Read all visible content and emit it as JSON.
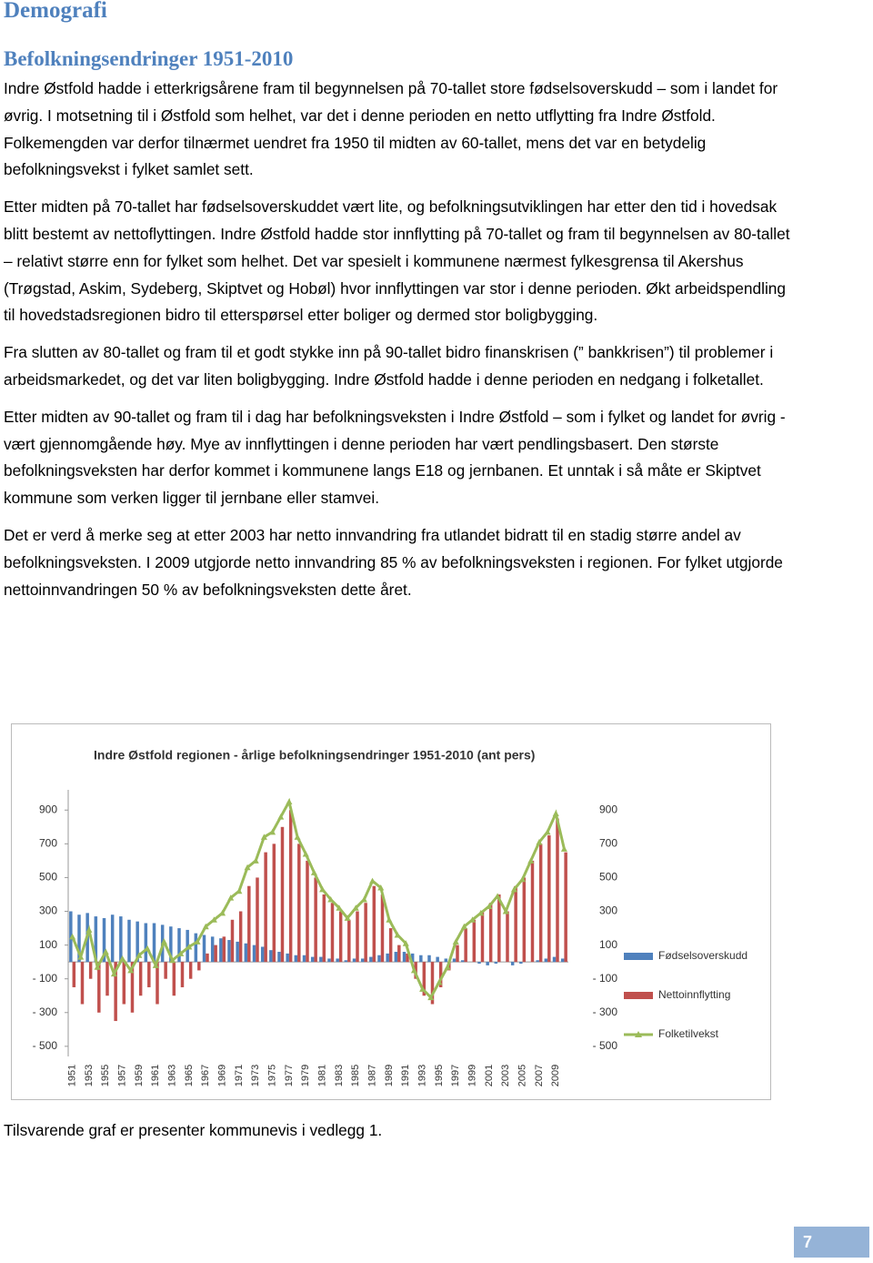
{
  "header": {
    "title": "Demografi",
    "subtitle": "Befolkningsendringer 1951-2010"
  },
  "paragraphs": [
    "Indre Østfold hadde i etterkrigsårene fram til begynnelsen på 70-tallet store fødselsoverskudd – som i landet for øvrig.  I motsetning til i Østfold som helhet, var det i denne perioden en netto utflytting fra Indre Østfold.  Folkemengden var derfor tilnærmet uendret fra 1950 til midten av 60-tallet, mens det var en betydelig befolkningsvekst i fylket samlet sett.",
    "Etter midten på 70-tallet har fødselsoverskuddet vært lite, og befolkningsutviklingen har etter den tid i hovedsak blitt bestemt av nettoflyttingen. Indre Østfold hadde stor innflytting på 70-tallet og fram til begynnelsen av 80-tallet – relativt større enn for fylket som helhet. Det var spesielt i kommunene nærmest fylkesgrensa til Akershus (Trøgstad, Askim, Sydeberg, Skiptvet og Hobøl) hvor innflyttingen var stor i denne perioden.  Økt arbeidspendling til hovedstadsregionen bidro til etterspørsel etter boliger og dermed stor boligbygging.",
    "Fra slutten av 80-tallet og fram til et godt stykke inn på 90-tallet bidro finanskrisen (” bankkrisen”) til problemer i arbeidsmarkedet, og det var liten boligbygging. Indre Østfold hadde i denne perioden en nedgang i folketallet.",
    "Etter midten av 90-tallet og fram til i dag har befolkningsveksten i Indre Østfold – som i fylket og landet for øvrig - vært gjennomgående høy.  Mye av innflyttingen i denne perioden har vært pendlingsbasert.  Den største befolkningsveksten har derfor kommet i kommunene langs E18 og jernbanen.  Et unntak i så måte er Skiptvet kommune som verken ligger til jernbane eller stamvei.",
    "Det er verd å merke seg at etter 2003 har netto innvandring fra utlandet bidratt til en stadig større andel av befolkningsveksten.  I 2009 utgjorde netto innvandring 85 % av befolkningsveksten i regionen.  For fylket utgjorde nettoinnvandringen 50 % av befolkningsveksten dette året."
  ],
  "after_chart": "Tilsvarende graf er presenter kommunevis i vedlegg 1.",
  "footer": {
    "page_number": "7"
  },
  "chart_data": {
    "type": "bar-line",
    "title": "Indre Østfold regionen - årlige befolkningsendringer 1951-2010 (ant pers)",
    "categories": [
      "1951",
      null,
      "1953",
      null,
      "1955",
      null,
      "1957",
      null,
      "1959",
      null,
      "1961",
      null,
      "1963",
      null,
      "1965",
      null,
      "1967",
      null,
      "1969",
      null,
      "1971",
      null,
      "1973",
      null,
      "1975",
      null,
      "1977",
      null,
      "1979",
      null,
      "1981",
      null,
      "1983",
      null,
      "1985",
      null,
      "1987",
      null,
      "1989",
      null,
      "1991",
      null,
      "1993",
      null,
      "1995",
      null,
      "1997",
      null,
      "1999",
      null,
      "2001",
      null,
      "2003",
      null,
      "2005",
      null,
      "2007",
      null,
      "2009",
      null
    ],
    "ylim": [
      -560,
      1020
    ],
    "yticks": [
      {
        "value": -500,
        "label": "- 500"
      },
      {
        "value": -300,
        "label": "- 300"
      },
      {
        "value": -100,
        "label": "- 100"
      },
      100,
      300,
      500,
      700,
      900
    ],
    "series": [
      {
        "name": "Fødselsoverskudd",
        "color": "#4f81bd",
        "kind": "bar",
        "values": [
          300,
          280,
          290,
          270,
          260,
          280,
          270,
          250,
          240,
          230,
          230,
          220,
          210,
          200,
          190,
          170,
          160,
          150,
          140,
          130,
          120,
          110,
          100,
          90,
          70,
          60,
          50,
          40,
          40,
          30,
          30,
          20,
          20,
          10,
          20,
          20,
          30,
          40,
          50,
          60,
          60,
          50,
          40,
          40,
          30,
          20,
          20,
          10,
          0,
          -10,
          -20,
          -10,
          0,
          -20,
          -10,
          0,
          10,
          20,
          30,
          20
        ]
      },
      {
        "name": "Nettoinnflytting",
        "color": "#c0504d",
        "kind": "bar",
        "values": [
          -150,
          -250,
          -100,
          -300,
          -200,
          -350,
          -250,
          -300,
          -200,
          -150,
          -250,
          -100,
          -200,
          -150,
          -100,
          -50,
          50,
          100,
          150,
          250,
          300,
          450,
          500,
          650,
          700,
          800,
          900,
          700,
          600,
          500,
          400,
          350,
          300,
          250,
          300,
          350,
          450,
          400,
          200,
          100,
          50,
          -100,
          -200,
          -250,
          -150,
          -50,
          100,
          200,
          250,
          300,
          350,
          400,
          300,
          450,
          500,
          600,
          700,
          750,
          850,
          650
        ]
      },
      {
        "name": "Folketilvekst",
        "color": "#9bbb59",
        "kind": "line",
        "values": [
          150,
          30,
          190,
          -30,
          60,
          -70,
          20,
          -50,
          40,
          80,
          -20,
          120,
          10,
          50,
          90,
          120,
          210,
          250,
          290,
          380,
          420,
          560,
          600,
          740,
          770,
          860,
          950,
          740,
          640,
          530,
          430,
          370,
          320,
          260,
          320,
          370,
          480,
          440,
          250,
          160,
          110,
          -50,
          -160,
          -210,
          -120,
          -30,
          120,
          210,
          250,
          290,
          330,
          390,
          300,
          430,
          490,
          600,
          710,
          770,
          880,
          670
        ]
      }
    ]
  }
}
